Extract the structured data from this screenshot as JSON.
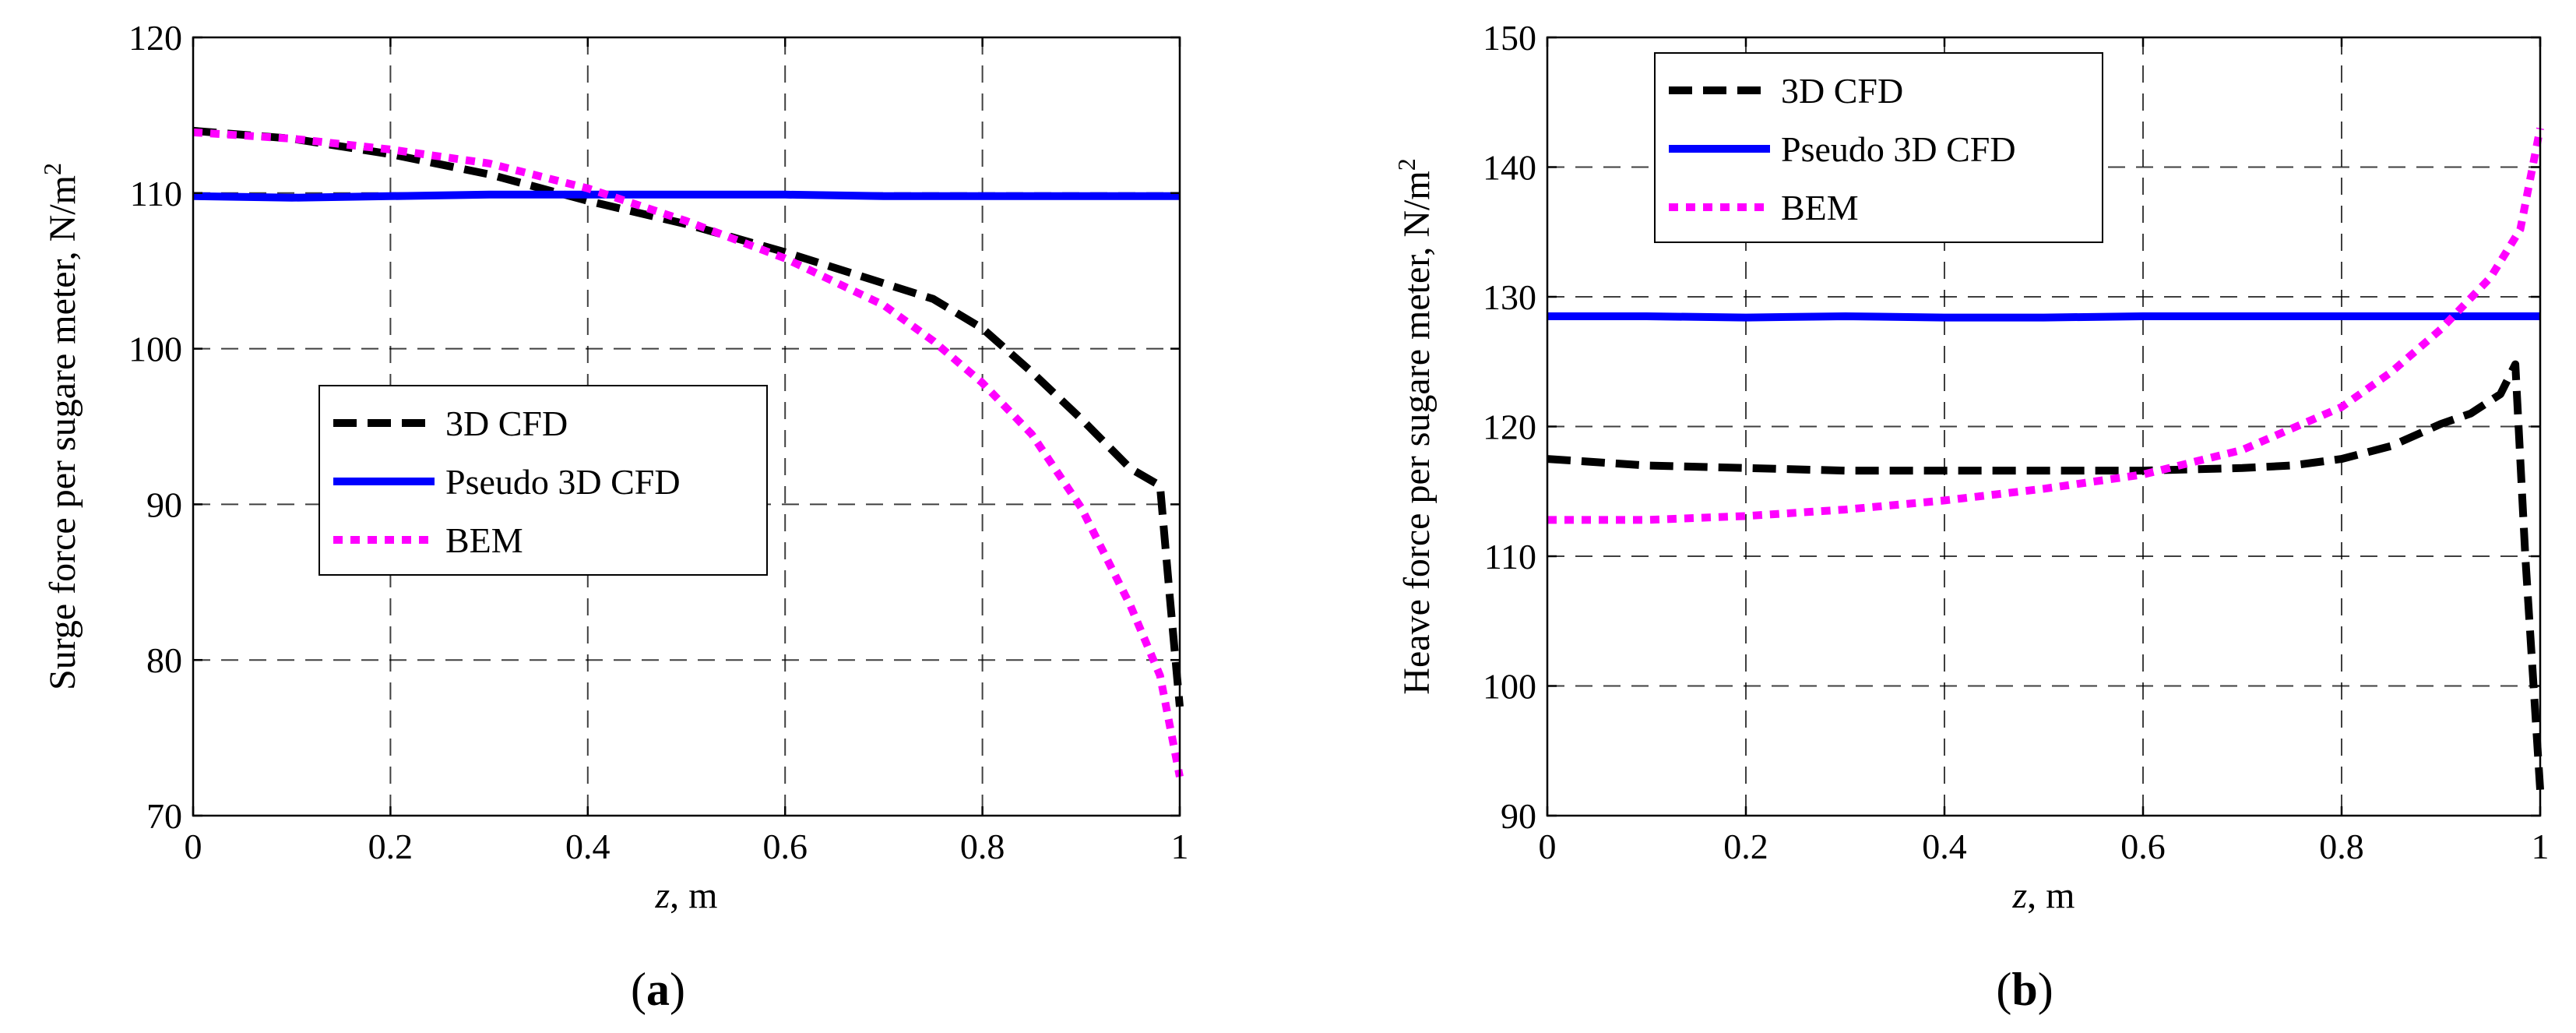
{
  "chart_data": [
    {
      "type": "line",
      "panel_label": "(a)",
      "xlabel_var": "z",
      "xlabel_unit": ", m",
      "ylabel": "Surge force per sugare meter, N/m",
      "ylabel_sup": "2",
      "xlim": [
        0,
        1
      ],
      "ylim": [
        70,
        120
      ],
      "xticks": [
        0,
        0.2,
        0.4,
        0.6,
        0.8,
        1
      ],
      "xtick_labels": [
        "0",
        "0.2",
        "0.4",
        "0.6",
        "0.8",
        "1"
      ],
      "yticks": [
        70,
        80,
        90,
        100,
        110,
        120
      ],
      "ytick_labels": [
        "70",
        "80",
        "90",
        "100",
        "110",
        "120"
      ],
      "grid": true,
      "legend_placement": "center",
      "series": [
        {
          "name": "3D CFD",
          "color": "#000000",
          "style": "dashed",
          "x": [
            0,
            0.1,
            0.2,
            0.3,
            0.4,
            0.5,
            0.6,
            0.7,
            0.75,
            0.8,
            0.85,
            0.9,
            0.95,
            0.98,
            0.99,
            1.0
          ],
          "y": [
            114,
            113.5,
            112.5,
            111.2,
            109.5,
            108,
            106.2,
            104.2,
            103.2,
            101.3,
            98.5,
            95.5,
            92.3,
            91.2,
            84,
            77
          ]
        },
        {
          "name": "Pseudo 3D CFD",
          "color": "#0000ff",
          "style": "solid",
          "x": [
            0,
            0.1,
            0.2,
            0.3,
            0.4,
            0.5,
            0.6,
            0.7,
            0.8,
            0.9,
            1.0
          ],
          "y": [
            109.8,
            109.7,
            109.8,
            109.9,
            109.9,
            109.9,
            109.9,
            109.8,
            109.8,
            109.8,
            109.8
          ]
        },
        {
          "name": "BEM",
          "color": "#ff00ff",
          "style": "dotted",
          "x": [
            0,
            0.1,
            0.2,
            0.3,
            0.4,
            0.5,
            0.6,
            0.7,
            0.75,
            0.8,
            0.85,
            0.9,
            0.95,
            0.98,
            1.0
          ],
          "y": [
            113.9,
            113.5,
            112.8,
            111.9,
            110.3,
            108.2,
            105.8,
            102.8,
            100.5,
            97.8,
            94.5,
            89.8,
            83.5,
            79,
            72.5
          ]
        }
      ]
    },
    {
      "type": "line",
      "panel_label": "(b)",
      "xlabel_var": "z",
      "xlabel_unit": ", m",
      "ylabel": "Heave force per sugare meter, N/m",
      "ylabel_sup": "2",
      "xlim": [
        0,
        1
      ],
      "ylim": [
        90,
        150
      ],
      "xticks": [
        0,
        0.2,
        0.4,
        0.6,
        0.8,
        1
      ],
      "xtick_labels": [
        "0",
        "0.2",
        "0.4",
        "0.6",
        "0.8",
        "1"
      ],
      "yticks": [
        90,
        100,
        110,
        120,
        130,
        140,
        150
      ],
      "ytick_labels": [
        "90",
        "100",
        "110",
        "120",
        "130",
        "140",
        "150"
      ],
      "grid": true,
      "legend_placement": "top-left",
      "series": [
        {
          "name": "3D CFD",
          "color": "#000000",
          "style": "dashed",
          "x": [
            0,
            0.1,
            0.2,
            0.3,
            0.4,
            0.5,
            0.6,
            0.7,
            0.75,
            0.8,
            0.85,
            0.9,
            0.93,
            0.96,
            0.975,
            0.985,
            1.0
          ],
          "y": [
            117.5,
            117,
            116.8,
            116.6,
            116.6,
            116.6,
            116.6,
            116.8,
            117,
            117.5,
            118.5,
            120.2,
            121,
            122.5,
            124.8,
            110,
            92
          ]
        },
        {
          "name": "Pseudo 3D CFD",
          "color": "#0000ff",
          "style": "solid",
          "x": [
            0,
            0.1,
            0.2,
            0.3,
            0.4,
            0.5,
            0.6,
            0.7,
            0.8,
            0.9,
            1.0
          ],
          "y": [
            128.5,
            128.5,
            128.4,
            128.5,
            128.4,
            128.4,
            128.5,
            128.5,
            128.5,
            128.5,
            128.5
          ]
        },
        {
          "name": "BEM",
          "color": "#ff00ff",
          "style": "dotted",
          "x": [
            0,
            0.1,
            0.2,
            0.3,
            0.4,
            0.5,
            0.6,
            0.7,
            0.8,
            0.85,
            0.9,
            0.95,
            0.98,
            1.0
          ],
          "y": [
            112.8,
            112.8,
            113.1,
            113.6,
            114.3,
            115.2,
            116.3,
            118.2,
            121.5,
            124.2,
            127.5,
            131.5,
            135.2,
            143
          ]
        }
      ]
    }
  ]
}
